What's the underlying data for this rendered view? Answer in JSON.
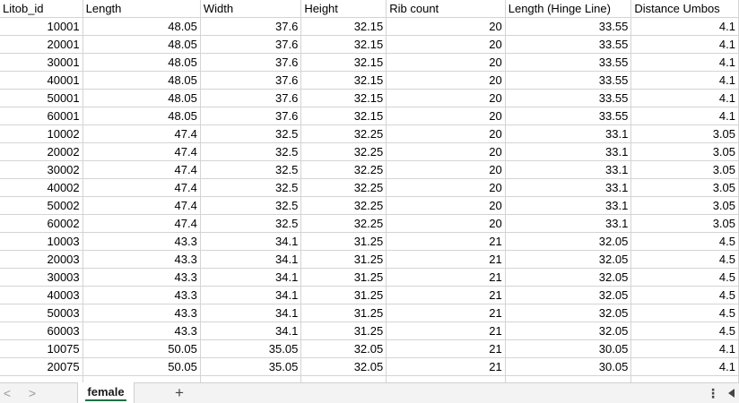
{
  "sheet": {
    "headers": [
      "Litob_id",
      "Length",
      "Width",
      "Height",
      "Rib count",
      "Length (Hinge Line)",
      "Distance Umbos"
    ],
    "rows": [
      [
        "10001",
        "48.05",
        "37.6",
        "32.15",
        "20",
        "33.55",
        "4.1"
      ],
      [
        "20001",
        "48.05",
        "37.6",
        "32.15",
        "20",
        "33.55",
        "4.1"
      ],
      [
        "30001",
        "48.05",
        "37.6",
        "32.15",
        "20",
        "33.55",
        "4.1"
      ],
      [
        "40001",
        "48.05",
        "37.6",
        "32.15",
        "20",
        "33.55",
        "4.1"
      ],
      [
        "50001",
        "48.05",
        "37.6",
        "32.15",
        "20",
        "33.55",
        "4.1"
      ],
      [
        "60001",
        "48.05",
        "37.6",
        "32.15",
        "20",
        "33.55",
        "4.1"
      ],
      [
        "10002",
        "47.4",
        "32.5",
        "32.25",
        "20",
        "33.1",
        "3.05"
      ],
      [
        "20002",
        "47.4",
        "32.5",
        "32.25",
        "20",
        "33.1",
        "3.05"
      ],
      [
        "30002",
        "47.4",
        "32.5",
        "32.25",
        "20",
        "33.1",
        "3.05"
      ],
      [
        "40002",
        "47.4",
        "32.5",
        "32.25",
        "20",
        "33.1",
        "3.05"
      ],
      [
        "50002",
        "47.4",
        "32.5",
        "32.25",
        "20",
        "33.1",
        "3.05"
      ],
      [
        "60002",
        "47.4",
        "32.5",
        "32.25",
        "20",
        "33.1",
        "3.05"
      ],
      [
        "10003",
        "43.3",
        "34.1",
        "31.25",
        "21",
        "32.05",
        "4.5"
      ],
      [
        "20003",
        "43.3",
        "34.1",
        "31.25",
        "21",
        "32.05",
        "4.5"
      ],
      [
        "30003",
        "43.3",
        "34.1",
        "31.25",
        "21",
        "32.05",
        "4.5"
      ],
      [
        "40003",
        "43.3",
        "34.1",
        "31.25",
        "21",
        "32.05",
        "4.5"
      ],
      [
        "50003",
        "43.3",
        "34.1",
        "31.25",
        "21",
        "32.05",
        "4.5"
      ],
      [
        "60003",
        "43.3",
        "34.1",
        "31.25",
        "21",
        "32.05",
        "4.5"
      ],
      [
        "10075",
        "50.05",
        "35.05",
        "32.05",
        "21",
        "30.05",
        "4.1"
      ],
      [
        "20075",
        "50.05",
        "35.05",
        "32.05",
        "21",
        "30.05",
        "4.1"
      ]
    ]
  },
  "sheet_bar": {
    "prev_icon": "chevron-left-icon",
    "next_icon": "chevron-right-icon",
    "tabs": [
      {
        "label": "female",
        "active": true
      }
    ],
    "add_icon": "plus-icon",
    "more_icon": "vertical-ellipsis-icon",
    "scroll_icon": "scroll-left-triangle-icon",
    "prev_glyph": "<",
    "next_glyph": ">",
    "add_glyph": "+",
    "more_glyph": "⋮"
  },
  "colors": {
    "grid_line": "#d4d4d4",
    "tab_accent": "#1e7145",
    "sheet_bar_bg": "#f3f3f3"
  }
}
